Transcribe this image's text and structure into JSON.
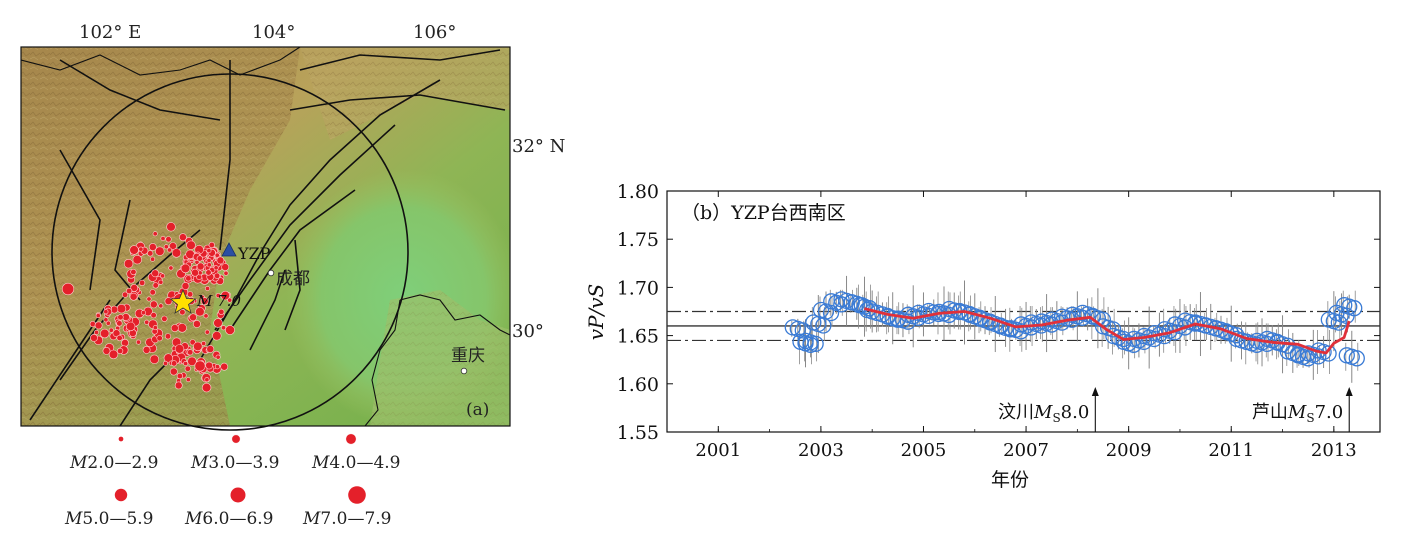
{
  "map": {
    "panel_label": "(a)",
    "lon_labels": [
      "102° E",
      "104°",
      "106°"
    ],
    "lat_labels": [
      "32° N",
      "30°"
    ],
    "station_name": "YZP",
    "city_chengdu": "成都",
    "city_chongqing": "重庆",
    "epicenter_label": "M 7.0",
    "colors": {
      "event": "#e4202a",
      "station": "#2b4fa3",
      "star": "#ffe000"
    },
    "legend": [
      {
        "prefix": "M",
        "range": "2.0—2.9"
      },
      {
        "prefix": "M",
        "range": "3.0—3.9"
      },
      {
        "prefix": "M",
        "range": "4.0—4.9"
      },
      {
        "prefix": "M",
        "range": "5.0—5.9"
      },
      {
        "prefix": "M",
        "range": "6.0—6.9"
      },
      {
        "prefix": "M",
        "range": "7.0—7.9"
      }
    ]
  },
  "chart_data": {
    "type": "scatter",
    "title": "（b）YZP台西南区",
    "ylabel": "vP/vS",
    "xlabel": "年份",
    "xlim": [
      2000,
      2013.9
    ],
    "ylim": [
      1.55,
      1.8
    ],
    "x_ticks": [
      "2001",
      "2003",
      "2005",
      "2007",
      "2009",
      "2011",
      "2013"
    ],
    "y_ticks": [
      "1.80",
      "1.75",
      "1.70",
      "1.65",
      "1.60",
      "1.55"
    ],
    "mean_line": 1.66,
    "band": [
      1.645,
      1.675
    ],
    "colors": {
      "points": "#3a7bd5",
      "smooth": "#e0303a",
      "errorbar": "#888888"
    },
    "annotations": [
      {
        "text_pre": "汶川",
        "mag": "M",
        "sub": "S",
        "val": "8.0",
        "x": 2008.35
      },
      {
        "text_pre": "芦山",
        "mag": "M",
        "sub": "S",
        "val": "7.0",
        "x": 2013.3
      }
    ],
    "series": [
      {
        "type": "scatter",
        "x": [
          2002.55,
          2002.7,
          2002.8,
          2002.95,
          2003.1,
          2003.3,
          2003.5,
          2003.7,
          2003.85,
          2004.0,
          2004.2,
          2004.4,
          2004.6,
          2004.8,
          2005.0,
          2005.2,
          2005.4,
          2005.6,
          2005.8,
          2006.0,
          2006.2,
          2006.4,
          2006.6,
          2006.8,
          2007.0,
          2007.2,
          2007.4,
          2007.6,
          2007.8,
          2008.0,
          2008.2,
          2008.4,
          2008.6,
          2008.8,
          2009.0,
          2009.2,
          2009.4,
          2009.6,
          2009.8,
          2010.0,
          2010.2,
          2010.4,
          2010.6,
          2010.8,
          2011.0,
          2011.2,
          2011.4,
          2011.6,
          2011.8,
          2012.0,
          2012.2,
          2012.4,
          2012.6,
          2012.8,
          2013.0,
          2013.15,
          2013.3,
          2013.35
        ],
        "y": [
          1.657,
          1.642,
          1.643,
          1.662,
          1.675,
          1.684,
          1.686,
          1.683,
          1.68,
          1.675,
          1.672,
          1.668,
          1.666,
          1.67,
          1.672,
          1.674,
          1.673,
          1.676,
          1.674,
          1.67,
          1.666,
          1.662,
          1.658,
          1.656,
          1.66,
          1.662,
          1.663,
          1.665,
          1.668,
          1.67,
          1.672,
          1.668,
          1.658,
          1.648,
          1.642,
          1.645,
          1.648,
          1.651,
          1.655,
          1.66,
          1.664,
          1.662,
          1.659,
          1.656,
          1.652,
          1.645,
          1.642,
          1.643,
          1.645,
          1.641,
          1.632,
          1.628,
          1.63,
          1.633,
          1.665,
          1.672,
          1.68,
          1.628
        ]
      },
      {
        "type": "line",
        "x": [
          2003.85,
          2004.3,
          2004.8,
          2005.3,
          2005.8,
          2006.3,
          2006.8,
          2007.3,
          2007.8,
          2008.25,
          2008.55,
          2008.9,
          2009.3,
          2009.8,
          2010.3,
          2010.8,
          2011.3,
          2011.8,
          2012.3,
          2012.65,
          2012.85,
          2013.0,
          2013.2,
          2013.3
        ],
        "y": [
          1.678,
          1.672,
          1.668,
          1.673,
          1.675,
          1.668,
          1.659,
          1.661,
          1.666,
          1.669,
          1.657,
          1.646,
          1.648,
          1.653,
          1.662,
          1.657,
          1.647,
          1.643,
          1.641,
          1.634,
          1.632,
          1.642,
          1.648,
          1.665
        ]
      }
    ]
  }
}
